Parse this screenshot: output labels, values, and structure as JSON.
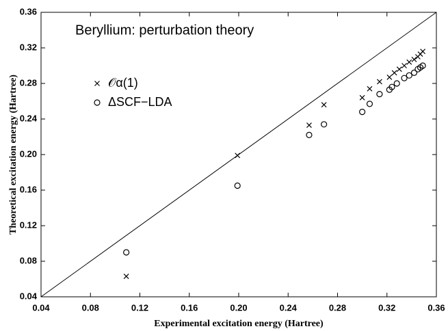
{
  "chart_data": {
    "type": "scatter",
    "title": "Beryllium: perturbation theory",
    "xlabel": "Experimental excitation energy (Hartree)",
    "ylabel": "Theoretical excitation energy (Hartree)",
    "xlim": [
      0.04,
      0.36
    ],
    "ylim": [
      0.04,
      0.36
    ],
    "xticks": [
      0.04,
      0.08,
      0.12,
      0.16,
      {
        "value": 0.2,
        "label": "0.20"
      },
      0.24,
      0.28,
      0.32,
      0.36
    ],
    "yticks": [
      0.04,
      0.08,
      0.12,
      0.16,
      {
        "value": 0.2,
        "label": "0.20"
      },
      0.24,
      0.28,
      0.32,
      0.36
    ],
    "series": [
      {
        "name": "𝒪α(1)",
        "marker": "x",
        "color": "#000000",
        "x": [
          0.109,
          0.199,
          0.257,
          0.269,
          0.3,
          0.306,
          0.314,
          0.322,
          0.326,
          0.33,
          0.334,
          0.338,
          0.342,
          0.345,
          0.347,
          0.349
        ],
        "values": [
          0.063,
          0.199,
          0.233,
          0.256,
          0.264,
          0.274,
          0.282,
          0.287,
          0.292,
          0.296,
          0.3,
          0.304,
          0.307,
          0.31,
          0.313,
          0.316
        ]
      },
      {
        "name": "ΔSCF−LDA",
        "marker": "o",
        "color": "#000000",
        "x": [
          0.109,
          0.199,
          0.257,
          0.269,
          0.3,
          0.306,
          0.314,
          0.322,
          0.324,
          0.328,
          0.334,
          0.338,
          0.342,
          0.345,
          0.347,
          0.349
        ],
        "values": [
          0.09,
          0.165,
          0.222,
          0.234,
          0.248,
          0.257,
          0.268,
          0.273,
          0.276,
          0.28,
          0.286,
          0.289,
          0.292,
          0.296,
          0.298,
          0.3
        ]
      }
    ]
  }
}
